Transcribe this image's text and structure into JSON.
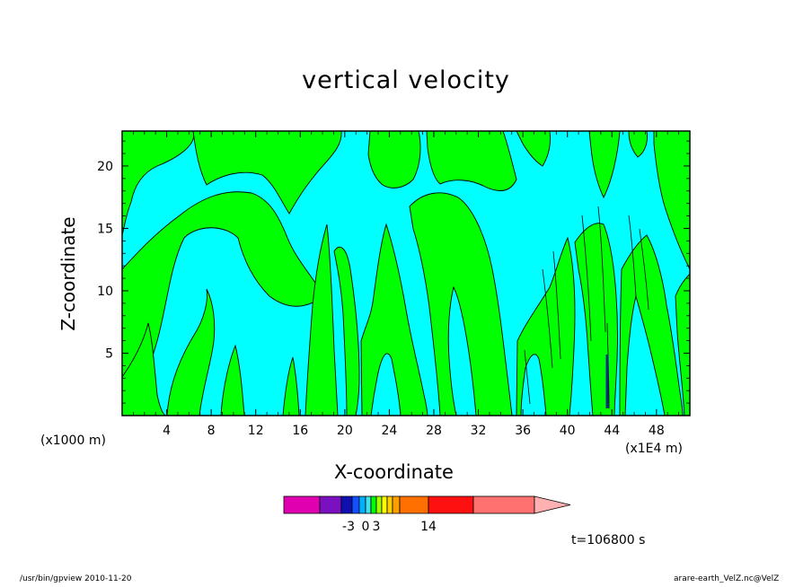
{
  "chart_data": {
    "type": "heatmap",
    "title": "vertical velocity",
    "xlabel": "X-coordinate",
    "ylabel": "Z-coordinate",
    "x_unit_note": "(x1000 m)",
    "x_scale_note": "(x1E4 m)",
    "xlim": [
      0,
      51
    ],
    "ylim": [
      0,
      22.8
    ],
    "x_ticks": [
      4,
      8,
      12,
      16,
      20,
      24,
      28,
      32,
      36,
      40,
      44,
      48
    ],
    "y_ticks": [
      5,
      10,
      15,
      20
    ],
    "time_label": "t=106800 s",
    "colorbar": {
      "tick_labels": [
        "-3",
        "0",
        "3",
        "14"
      ],
      "colors": [
        "#e000b0",
        "#7a10c0",
        "#1010b0",
        "#1050ff",
        "#00b0ff",
        "#40e0f0",
        "#00ff00",
        "#a0ff00",
        "#ffff00",
        "#ffd000",
        "#ffa000",
        "#ff7000",
        "#ff1010",
        "#ff7070",
        "#ffb0b0"
      ]
    },
    "fields": {
      "positive_color": "#00ff00",
      "negative_color": "#00ffff",
      "contour_color": "#000000"
    }
  },
  "footer": {
    "left": "/usr/bin/gpview   2010-11-20",
    "right": "arare-earth_VelZ.nc@VelZ"
  }
}
